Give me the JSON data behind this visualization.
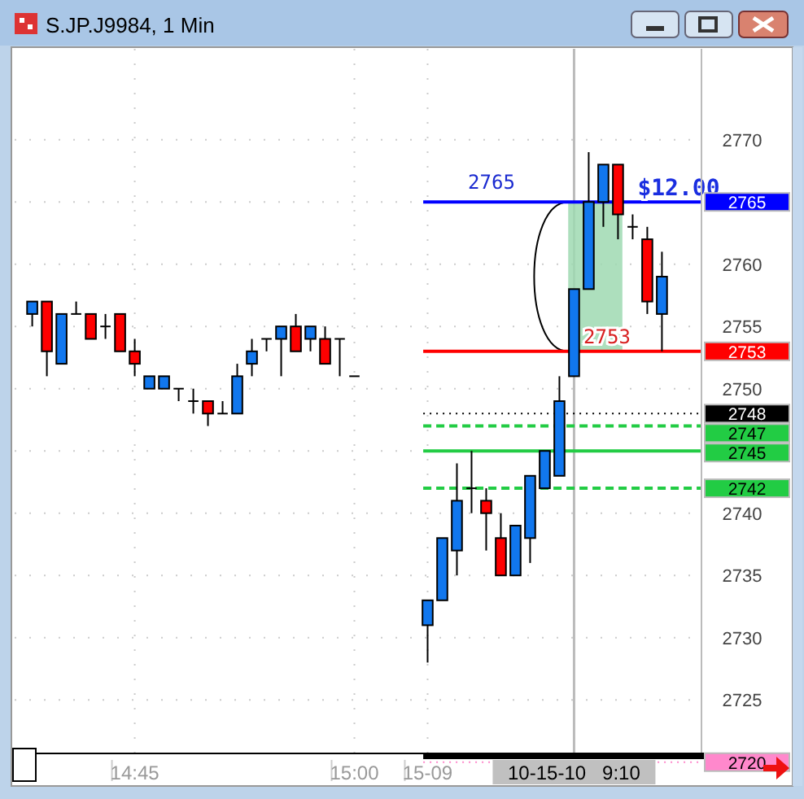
{
  "chart_data": {
    "type": "candlestick",
    "title": "S.JP.J9984, 1 Min",
    "categories": [
      null,
      null,
      null,
      null,
      null,
      null,
      null,
      "14:45",
      null,
      null,
      null,
      null,
      null,
      null,
      null,
      null,
      null,
      null,
      null,
      null,
      null,
      null,
      "15:00",
      null,
      null,
      null,
      null,
      "15-09",
      null,
      null,
      null,
      null,
      null,
      null,
      null,
      null,
      null,
      "10-15-10   9:10",
      null,
      null,
      null,
      null,
      null,
      null
    ],
    "ohlc": [
      [
        2756,
        2757,
        2755,
        2757
      ],
      [
        2757,
        2757,
        2751,
        2753
      ],
      [
        2752,
        2756,
        2752,
        2756
      ],
      [
        2756,
        2757,
        2756,
        2756
      ],
      [
        2756,
        2756,
        2754,
        2754
      ],
      [
        2755,
        2756,
        2754,
        2755
      ],
      [
        2756,
        2756,
        2753,
        2753
      ],
      [
        2753,
        2754,
        2751,
        2752
      ],
      [
        2750,
        2751,
        2750,
        2751
      ],
      [
        2750,
        2751,
        2750,
        2751
      ],
      [
        2750,
        2750,
        2749,
        2750
      ],
      [
        2749,
        2750,
        2748,
        2749
      ],
      [
        2749,
        2749,
        2747,
        2748
      ],
      [
        2748,
        2749,
        2748,
        2748
      ],
      [
        2748,
        2752,
        2748,
        2751
      ],
      [
        2752,
        2754,
        2751,
        2753
      ],
      [
        2754,
        2754,
        2753,
        2754
      ],
      [
        2754,
        2755,
        2751,
        2755
      ],
      [
        2755,
        2756,
        2753,
        2753
      ],
      [
        2754,
        2755,
        2753,
        2755
      ],
      [
        2754,
        2755,
        2752,
        2752
      ],
      [
        2754,
        2754,
        2751,
        2754
      ],
      [
        2751,
        2751,
        2751,
        2751
      ],
      null,
      null,
      null,
      null,
      [
        2731,
        2733,
        2728,
        2733
      ],
      [
        2733,
        2738,
        2733,
        2738
      ],
      [
        2737,
        2744,
        2735,
        2741
      ],
      [
        2742,
        2745,
        2740,
        2742
      ],
      [
        2741,
        2742,
        2737,
        2740
      ],
      [
        2738,
        2740,
        2735,
        2735
      ],
      [
        2735,
        2739,
        2735,
        2739
      ],
      [
        2738,
        2743,
        2736,
        2743
      ],
      [
        2742,
        2745,
        2742,
        2745
      ],
      [
        2743,
        2751,
        2743,
        2749
      ],
      [
        2751,
        2758,
        2751,
        2758
      ],
      [
        2758,
        2769,
        2758,
        2765
      ],
      [
        2765,
        2768,
        2763,
        2768
      ],
      [
        2768,
        2768,
        2762,
        2764
      ],
      [
        2763,
        2764,
        2762,
        2763
      ],
      [
        2762,
        2763,
        2756,
        2757
      ],
      [
        2756,
        2761,
        2753,
        2759
      ]
    ],
    "colors": [
      "#1177ee",
      "#ff0000",
      "#1177ee",
      "#000000",
      "#ff0000",
      "#000000",
      "#ff0000",
      "#ff0000",
      "#1177ee",
      "#1177ee",
      "#000000",
      "#000000",
      "#ff0000",
      "#000000",
      "#1177ee",
      "#1177ee",
      "#000000",
      "#1177ee",
      "#ff0000",
      "#1177ee",
      "#ff0000",
      "#000000",
      "#000000",
      null,
      null,
      null,
      null,
      "#1177ee",
      "#1177ee",
      "#1177ee",
      "#000000",
      "#ff0000",
      "#ff0000",
      "#1177ee",
      "#1177ee",
      "#1177ee",
      "#1177ee",
      "#1177ee",
      "#1177ee",
      "#1177ee",
      "#ff0000",
      "#000000",
      "#ff0000",
      "#1177ee"
    ],
    "ref_lines": [
      {
        "axis": "x",
        "value": "10-15-10   9:10",
        "color": "#bbbbbb",
        "line_style": "solid"
      },
      {
        "axis": "y",
        "value": 2765,
        "label": "2765",
        "color": "#0000ff",
        "line_style": "solid"
      },
      {
        "axis": "y",
        "value": 2753,
        "label": "2753",
        "color": "#ff0000",
        "line_style": "solid"
      },
      {
        "axis": "y",
        "value": 2748,
        "label": "2748",
        "color": "#000000",
        "line_style": "dotted"
      },
      {
        "axis": "y",
        "value": 2747,
        "label": "2747",
        "color": "#22cc44",
        "line_style": "dashed"
      },
      {
        "axis": "y",
        "value": 2745,
        "label": "2745",
        "color": "#22cc44",
        "line_style": "solid"
      },
      {
        "axis": "y",
        "value": 2742,
        "label": "2742",
        "color": "#22cc44",
        "line_style": "dashed"
      },
      {
        "axis": "y",
        "value": 2720,
        "label": "2720",
        "color": "#ff88cc",
        "line_style": "dotted"
      }
    ],
    "annotations": [
      "$12.00",
      "2765",
      {
        "text": "2753",
        "y": 2753
      }
    ],
    "ylim": [
      2720.7,
      2777.3
    ],
    "yticks": [
      2725,
      2730,
      2735,
      2740,
      2745,
      2750,
      2755,
      2760,
      2765,
      2770
    ],
    "grid": true
  }
}
